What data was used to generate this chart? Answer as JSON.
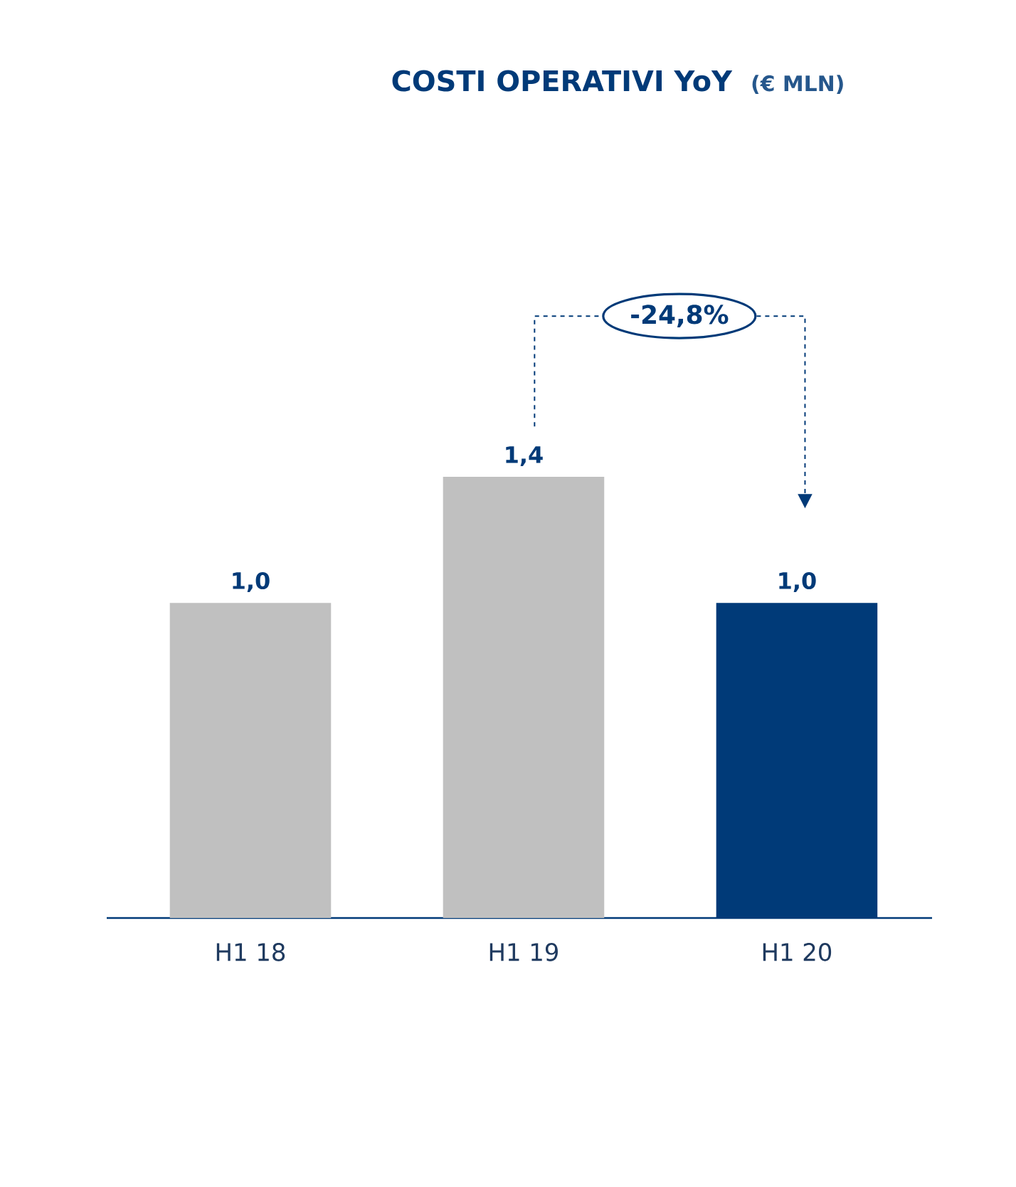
{
  "chart_data": {
    "type": "bar",
    "title": "COSTI OPERATIVI YoY",
    "subtitle": "(€ MLN)",
    "categories": [
      "H1 18",
      "H1 19",
      "H1 20"
    ],
    "values": [
      1.0,
      1.4,
      1.0
    ],
    "value_labels": [
      "1,0",
      "1,4",
      "1,0"
    ],
    "colors": [
      "#c0c0c0",
      "#c0c0c0",
      "#003a78"
    ],
    "annotations": [
      "-24,8%"
    ]
  }
}
